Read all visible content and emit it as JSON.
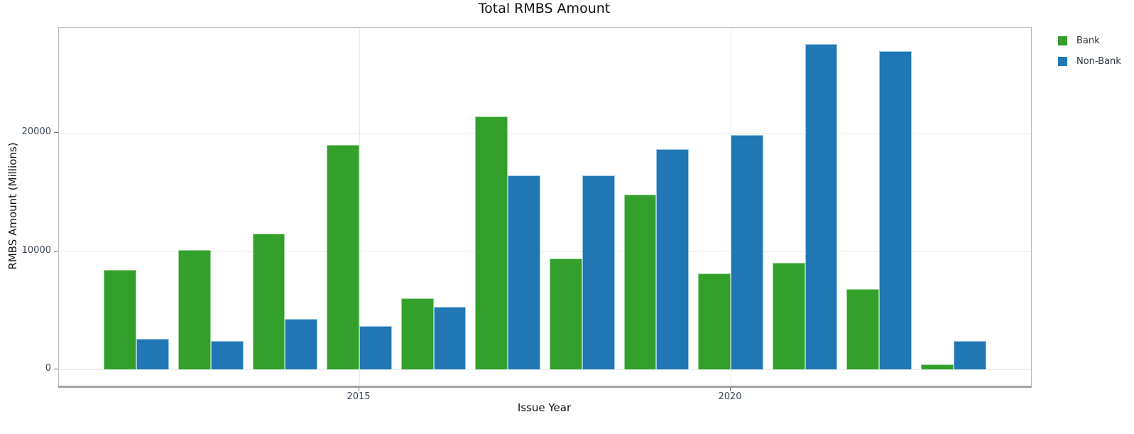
{
  "title": "Total RMBS Amount",
  "colors": {
    "bank": "#33a02c",
    "non_bank": "#2077b4",
    "gridline": "#e9e9e9",
    "axis_line": "#a3a3a3",
    "tick_text": "#3b4754",
    "background": "#ffffff"
  },
  "legend": {
    "position": "top-right",
    "items": [
      {
        "label": "Bank",
        "color": "#33a02c"
      },
      {
        "label": "Non-Bank",
        "color": "#2077b4"
      }
    ]
  },
  "axes": {
    "x_title": "Issue Year",
    "y_title": "RMBS Amount (Millions)",
    "x_ticks": [
      {
        "value": 2015,
        "label": "2015"
      },
      {
        "value": 2020,
        "label": "2020"
      }
    ],
    "y_ticks": [
      {
        "value": 0,
        "label": "0"
      },
      {
        "value": 10000,
        "label": "10000"
      },
      {
        "value": 20000,
        "label": "20000"
      }
    ]
  },
  "chart_data": {
    "type": "bar",
    "title": "Total RMBS Amount",
    "xlabel": "Issue Year",
    "ylabel": "RMBS Amount (Millions)",
    "categories": [
      2012,
      2013,
      2014,
      2015,
      2016,
      2017,
      2018,
      2019,
      2020,
      2021,
      2022,
      2023
    ],
    "series": [
      {
        "name": "Bank",
        "color": "#33a02c",
        "values": [
          8400,
          10100,
          11500,
          19000,
          6000,
          21400,
          9400,
          14800,
          8100,
          9000,
          6800,
          450
        ]
      },
      {
        "name": "Non-Bank",
        "color": "#2077b4",
        "values": [
          2600,
          2400,
          4300,
          3700,
          5300,
          16400,
          16400,
          18600,
          19800,
          27500,
          26900,
          2400
        ]
      }
    ],
    "xlim": [
      2011,
      2024
    ],
    "ylim": [
      0,
      28900
    ],
    "grid": true,
    "legend_position": "top-right"
  }
}
